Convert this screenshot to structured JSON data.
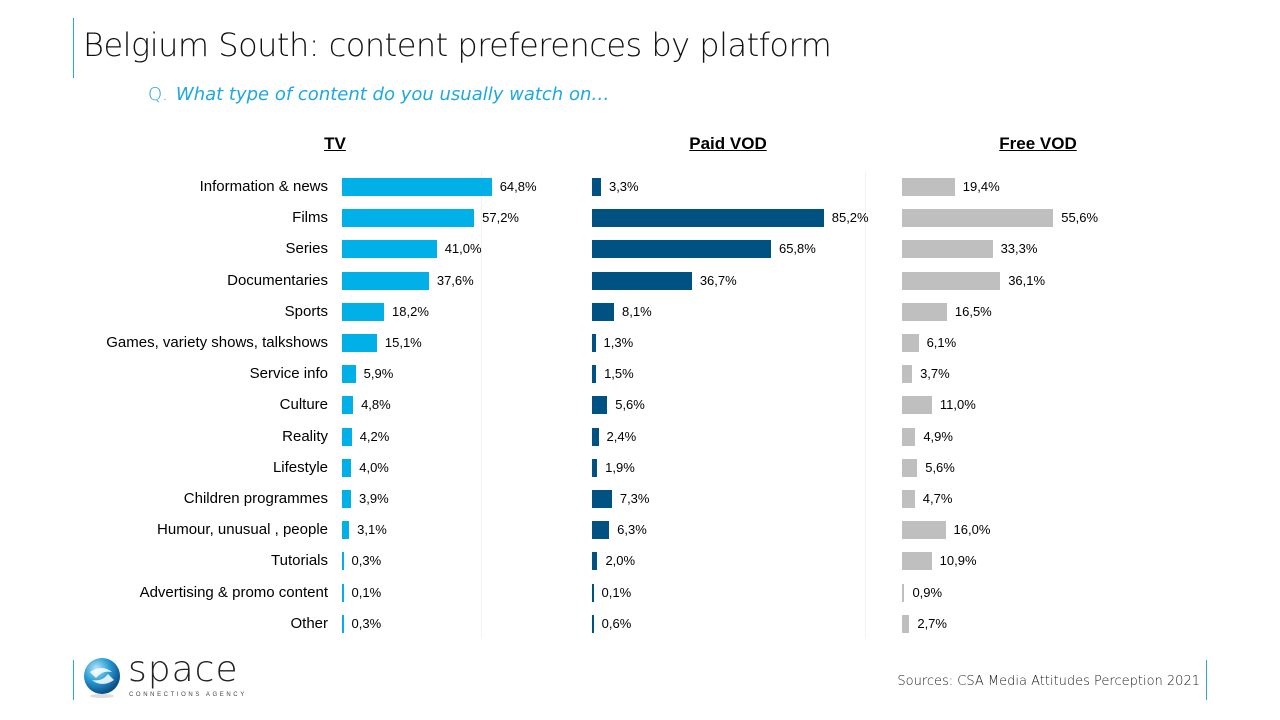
{
  "header": {
    "title": "Belgium South: content preferences by platform",
    "question_prefix": "Q.",
    "question": "What type of content do you usually watch on…"
  },
  "footer": {
    "source": "Sources: CSA Media Attitudes  Perception 2021",
    "logo_word": "space",
    "logo_sub": "CONNECTIONS AGENCY"
  },
  "chart_data": {
    "type": "bar",
    "orientation": "horizontal",
    "title": "Belgium South: content preferences by platform",
    "unit": "%",
    "categories": [
      "Information & news",
      "Films",
      "Series",
      "Documentaries",
      "Sports",
      "Games, variety shows, talkshows",
      "Service info",
      "Culture",
      "Reality",
      "Lifestyle",
      "Children programmes",
      "Humour, unusual , people",
      "Tutorials",
      "Advertising & promo content",
      "Other"
    ],
    "series": [
      {
        "name": "TV",
        "color": "#00b0e6",
        "values": [
          64.8,
          57.2,
          41.0,
          37.6,
          18.2,
          15.1,
          5.9,
          4.8,
          4.2,
          4.0,
          3.9,
          3.1,
          0.3,
          0.1,
          0.3
        ],
        "labels": [
          "64,8%",
          "57,2%",
          "41,0%",
          "37,6%",
          "18,2%",
          "15,1%",
          "5,9%",
          "4,8%",
          "4,2%",
          "4,0%",
          "3,9%",
          "3,1%",
          "0,3%",
          "0,1%",
          "0,3%"
        ]
      },
      {
        "name": "Paid VOD",
        "color": "#005282",
        "values": [
          3.3,
          85.2,
          65.8,
          36.7,
          8.1,
          1.3,
          1.5,
          5.6,
          2.4,
          1.9,
          7.3,
          6.3,
          2.0,
          0.1,
          0.6
        ],
        "labels": [
          "3,3%",
          "85,2%",
          "65,8%",
          "36,7%",
          "8,1%",
          "1,3%",
          "1,5%",
          "5,6%",
          "2,4%",
          "1,9%",
          "7,3%",
          "6,3%",
          "2,0%",
          "0,1%",
          "0,6%"
        ]
      },
      {
        "name": "Free VOD",
        "color": "#bfbfbf",
        "values": [
          19.4,
          55.6,
          33.3,
          36.1,
          16.5,
          6.1,
          3.7,
          11.0,
          4.9,
          5.6,
          4.7,
          16.0,
          10.9,
          0.9,
          2.7
        ],
        "labels": [
          "19,4%",
          "55,6%",
          "33,3%",
          "36,1%",
          "16,5%",
          "6,1%",
          "3,7%",
          "11,0%",
          "4,9%",
          "5,6%",
          "4,7%",
          "16,0%",
          "10,9%",
          "0,9%",
          "2,7%"
        ]
      }
    ]
  }
}
